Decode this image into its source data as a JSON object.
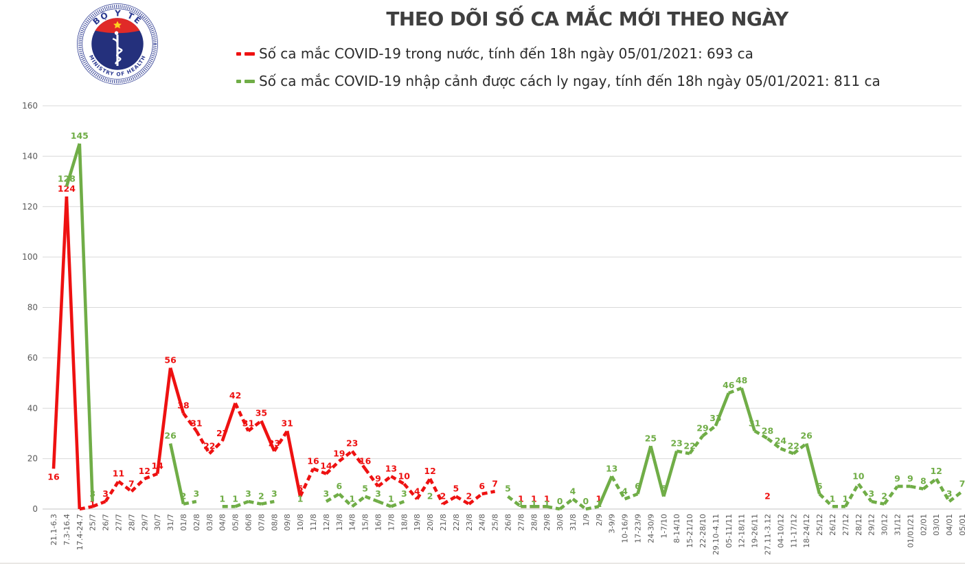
{
  "header": {
    "title": "THEO DÕI SỐ CA MẮC MỚI THEO NGÀY",
    "logo": {
      "top_text": "BỘ Y TẾ",
      "bottom_text": "MINISTRY OF HEALTH",
      "ring_color": "#2B3990",
      "disc_color": "#24307c",
      "cap_color": "#e02a28",
      "star_color": "#ffd21f"
    },
    "legend": [
      {
        "label": "Số ca mắc COVID-19 trong nước, tính đến 18h ngày 05/01/2021: 693 ca",
        "color": "#ee1111"
      },
      {
        "label": "Số ca mắc COVID-19 nhập cảnh được cách ly ngay, tính đến 18h ngày 05/01/2021: 811 ca",
        "color": "#70ad47"
      }
    ]
  },
  "chart_data": {
    "type": "line",
    "title": "THEO DÕI SỐ CA MẮC MỚI THEO NGÀY",
    "xlabel": "",
    "ylabel": "",
    "ylim": [
      0,
      160
    ],
    "yticks": [
      0,
      20,
      40,
      60,
      80,
      100,
      120,
      140,
      160
    ],
    "grid": "horizontal",
    "legend_position": "top",
    "grid_color": "#d9d9d9",
    "axis_text_color": "#595959",
    "categories": [
      "21.1-6.3",
      "7.3-16.4",
      "17.4-24.7",
      "25/7",
      "26/7",
      "27/7",
      "28/7",
      "29/7",
      "30/7",
      "31/7",
      "01/8",
      "02/8",
      "03/8",
      "04/8",
      "05/8",
      "06/8",
      "07/8",
      "08/8",
      "09/8",
      "10/8",
      "11/8",
      "12/8",
      "13/8",
      "14/8",
      "15/8",
      "16/8",
      "17/8",
      "18/8",
      "19/8",
      "20/8",
      "21/8",
      "22/8",
      "23/8",
      "24/8",
      "25/8",
      "26/8",
      "27/8",
      "28/8",
      "29/8",
      "30/8",
      "31/8",
      "1/9",
      "2/9",
      "3-9/9",
      "10-16/9",
      "17-23/9",
      "24-30/9",
      "1-7/10",
      "8-14/10",
      "15-21/10",
      "22-28/10",
      "29.10-4.11",
      "05-11/11",
      "12-18/11",
      "19-26/11",
      "27.11-3.12",
      "04-10/12",
      "11-17/12",
      "18-24/12",
      "25/12",
      "26/12",
      "27/12",
      "28/12",
      "29/12",
      "30/12",
      "31/12",
      "01/01/21",
      "02/01",
      "03/01",
      "04/01",
      "05/01"
    ],
    "series": [
      {
        "name": "Số ca mắc COVID-19 trong nước",
        "color": "#ee1111",
        "label_hidden_indices": [
          2
        ],
        "values": [
          16,
          124,
          0,
          1,
          3,
          11,
          7,
          12,
          14,
          56,
          38,
          31,
          22,
          27,
          42,
          31,
          35,
          23,
          31,
          5,
          16,
          14,
          19,
          23,
          16,
          9,
          13,
          10,
          4,
          12,
          2,
          5,
          2,
          6,
          7,
          null,
          1,
          1,
          1,
          null,
          null,
          null,
          1,
          null,
          null,
          null,
          null,
          null,
          null,
          null,
          null,
          null,
          null,
          null,
          null,
          2,
          null,
          null,
          null,
          null,
          null,
          null,
          null,
          null,
          null,
          null,
          null,
          null,
          null,
          null,
          null
        ]
      },
      {
        "name": "Số ca mắc COVID-19 nhập cảnh được cách ly ngay",
        "color": "#70ad47",
        "label_hidden_indices": [],
        "values": [
          null,
          128,
          145,
          3,
          null,
          null,
          null,
          null,
          null,
          26,
          2,
          3,
          null,
          1,
          1,
          3,
          2,
          3,
          null,
          1,
          null,
          3,
          6,
          1,
          5,
          3,
          1,
          3,
          null,
          2,
          null,
          null,
          null,
          null,
          null,
          5,
          1,
          1,
          1,
          0,
          4,
          0,
          1,
          13,
          4,
          6,
          25,
          5,
          23,
          22,
          29,
          33,
          46,
          48,
          31,
          28,
          24,
          22,
          26,
          6,
          1,
          1,
          10,
          3,
          2,
          9,
          9,
          8,
          12,
          3,
          7
        ]
      }
    ]
  }
}
